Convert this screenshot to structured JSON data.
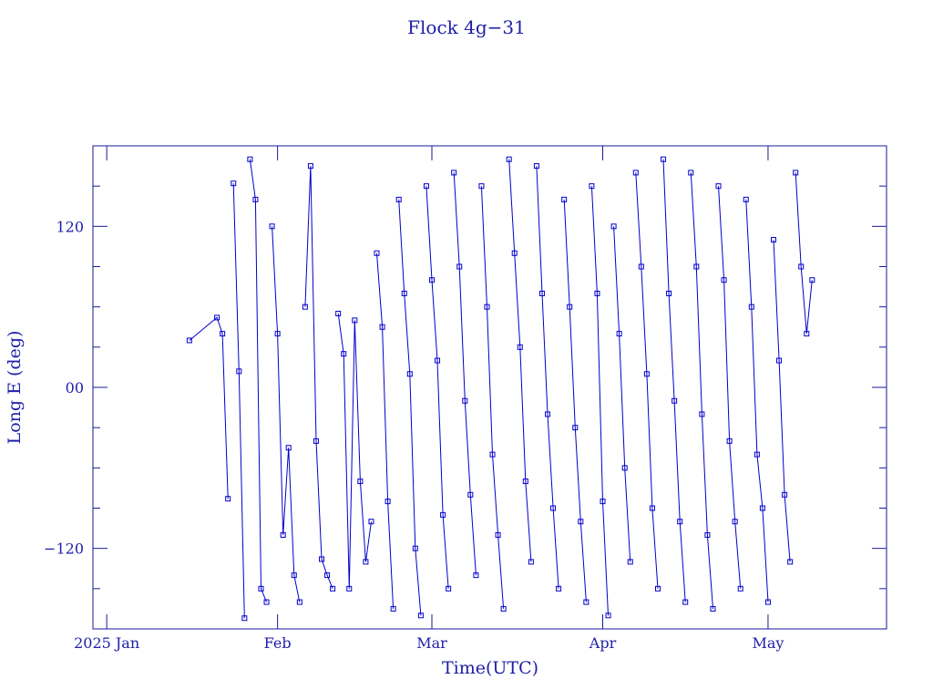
{
  "chart_data": {
    "type": "line",
    "title": "Flock 4g−31",
    "xlabel": "Time(UTC)",
    "ylabel": "Long E (deg)",
    "xlim": [
      -2.5,
      141.5
    ],
    "xticks": [
      {
        "value": 0,
        "label": "2025 Jan"
      },
      {
        "value": 31,
        "label": "Feb"
      },
      {
        "value": 59,
        "label": "Mar"
      },
      {
        "value": 90,
        "label": "Apr"
      },
      {
        "value": 120,
        "label": "May"
      }
    ],
    "ylim": [
      -180,
      180
    ],
    "yticks": [
      {
        "value": -120,
        "label": "−120"
      },
      {
        "value": 0,
        "label": "00"
      },
      120
    ],
    "yminorticks": [
      -150,
      -90,
      -60,
      -30,
      30,
      60,
      90,
      150
    ],
    "x": [
      15,
      20,
      21,
      22,
      22.5,
      23,
      24,
      25,
      25.5,
      26,
      27,
      28,
      29,
      29.5,
      30,
      31,
      32,
      33,
      34,
      35,
      35.5,
      36,
      37,
      38,
      39,
      40,
      41,
      41.5,
      42,
      43,
      44,
      45,
      46,
      47,
      48,
      48.5,
      49,
      50,
      51,
      52,
      52.5,
      53,
      54,
      55,
      56,
      57,
      57.5,
      58,
      59,
      60,
      61,
      62,
      62.5,
      63,
      64,
      65,
      66,
      67,
      67.5,
      68,
      69,
      70,
      71,
      72,
      72.5,
      73,
      74,
      75,
      76,
      77,
      77.5,
      78,
      79,
      80,
      81,
      82,
      82.5,
      83,
      84,
      85,
      86,
      87,
      87.5,
      88,
      89,
      90,
      91,
      91.5,
      92,
      93,
      94,
      95,
      95.5,
      96,
      97,
      98,
      99,
      100,
      100.5,
      101,
      102,
      103,
      104,
      105,
      105.5,
      106,
      107,
      108,
      109,
      110,
      110.5,
      111,
      112,
      113,
      114,
      115,
      115.5,
      116,
      117,
      118,
      119,
      120,
      120.5,
      121,
      122,
      123,
      124,
      124.5,
      125,
      126,
      127,
      128
    ],
    "series": [
      {
        "name": "Flock 4g−31",
        "color": "#0000cc",
        "values": [
          35,
          52,
          40,
          -83,
          null,
          152,
          12,
          -172,
          null,
          170,
          140,
          -150,
          -160,
          null,
          120,
          40,
          -110,
          -45,
          -140,
          -160,
          null,
          60,
          165,
          -40,
          -128,
          -140,
          -150,
          null,
          55,
          25,
          -150,
          50,
          -70,
          -130,
          -100,
          null,
          100,
          45,
          -85,
          -165,
          null,
          140,
          70,
          10,
          -120,
          -170,
          null,
          150,
          80,
          20,
          -95,
          -150,
          null,
          160,
          90,
          -10,
          -80,
          -140,
          null,
          150,
          60,
          -50,
          -110,
          -165,
          null,
          170,
          100,
          30,
          -70,
          -130,
          null,
          165,
          70,
          -20,
          -90,
          -150,
          null,
          140,
          60,
          -30,
          -100,
          -160,
          null,
          150,
          70,
          -85,
          -170,
          null,
          120,
          40,
          -60,
          -130,
          null,
          160,
          90,
          10,
          -90,
          -150,
          null,
          170,
          70,
          -10,
          -100,
          -160,
          null,
          160,
          90,
          -20,
          -110,
          -165,
          null,
          150,
          80,
          -40,
          -100,
          -150,
          null,
          140,
          60,
          -50,
          -90,
          -160,
          null,
          110,
          20,
          -80,
          -130,
          null,
          160,
          90,
          40,
          80
        ]
      }
    ]
  }
}
